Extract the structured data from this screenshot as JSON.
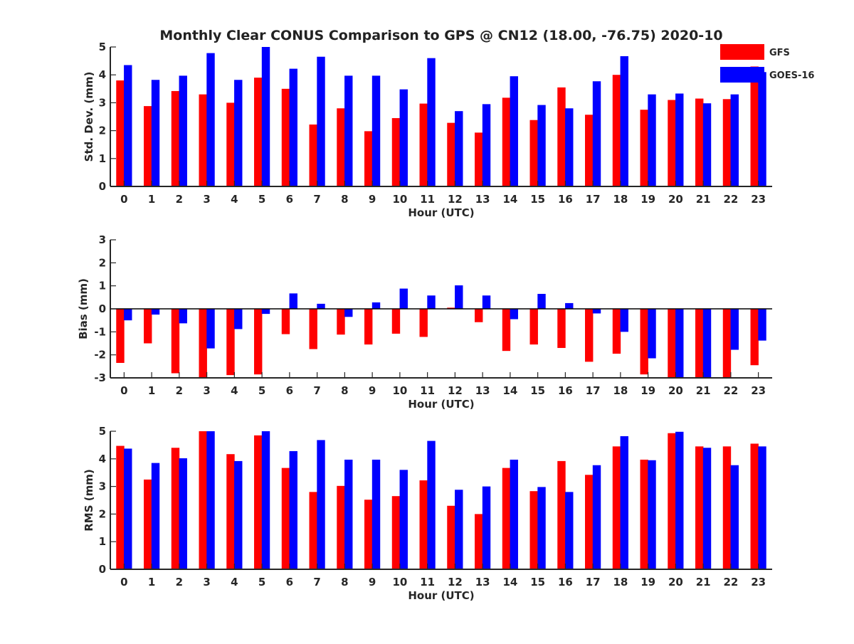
{
  "title": "Monthly Clear CONUS Comparison to GPS @ CN12 (18.00, -76.75) 2020-10",
  "colors": {
    "GFS": "#ff0000",
    "GOES-16": "#0000ff"
  },
  "chart_data": [
    {
      "type": "bar",
      "categories": [
        "0",
        "1",
        "2",
        "3",
        "4",
        "5",
        "6",
        "7",
        "8",
        "9",
        "10",
        "11",
        "12",
        "13",
        "14",
        "15",
        "16",
        "17",
        "18",
        "19",
        "20",
        "21",
        "22",
        "23"
      ],
      "xlabel": "Hour (UTC)",
      "ylabel": "Std. Dev. (mm)",
      "ylim": [
        0,
        5
      ],
      "yticks": [
        0,
        1,
        2,
        3,
        4,
        5
      ],
      "legend": "top-right",
      "series": [
        {
          "name": "GFS",
          "values": [
            3.8,
            2.88,
            3.42,
            3.3,
            3.0,
            3.9,
            3.5,
            2.22,
            2.8,
            1.98,
            2.45,
            2.97,
            2.28,
            1.93,
            3.18,
            2.38,
            3.55,
            2.57,
            4.0,
            2.75,
            3.1,
            3.15,
            3.13,
            4.3
          ]
        },
        {
          "name": "GOES-16",
          "values": [
            4.35,
            3.82,
            3.97,
            4.78,
            3.82,
            5.0,
            4.22,
            4.65,
            3.97,
            3.97,
            3.48,
            4.6,
            2.7,
            2.95,
            3.95,
            2.92,
            2.8,
            3.77,
            4.67,
            3.3,
            3.33,
            2.98,
            3.3,
            4.1
          ]
        }
      ]
    },
    {
      "type": "bar",
      "categories": [
        "0",
        "1",
        "2",
        "3",
        "4",
        "5",
        "6",
        "7",
        "8",
        "9",
        "10",
        "11",
        "12",
        "13",
        "14",
        "15",
        "16",
        "17",
        "18",
        "19",
        "20",
        "21",
        "22",
        "23"
      ],
      "xlabel": "Hour (UTC)",
      "ylabel": "Bias (mm)",
      "ylim": [
        -3,
        3
      ],
      "yticks": [
        -3,
        -2,
        -1,
        0,
        1,
        2,
        3
      ],
      "series": [
        {
          "name": "GFS",
          "values": [
            -2.35,
            -1.5,
            -2.8,
            -3.0,
            -2.88,
            -2.85,
            -1.1,
            -1.75,
            -1.12,
            -1.55,
            -1.08,
            -1.22,
            0.05,
            -0.58,
            -1.83,
            -1.55,
            -1.7,
            -2.3,
            -1.95,
            -2.85,
            -3.0,
            -3.0,
            -3.0,
            -2.45
          ]
        },
        {
          "name": "GOES-16",
          "values": [
            -0.5,
            -0.25,
            -0.63,
            -1.72,
            -0.88,
            -0.22,
            0.67,
            0.22,
            -0.35,
            0.28,
            0.88,
            0.58,
            1.02,
            0.58,
            -0.45,
            0.65,
            0.25,
            -0.2,
            -1.0,
            -2.15,
            -3.0,
            -3.0,
            -1.78,
            -1.38
          ]
        }
      ]
    },
    {
      "type": "bar",
      "categories": [
        "0",
        "1",
        "2",
        "3",
        "4",
        "5",
        "6",
        "7",
        "8",
        "9",
        "10",
        "11",
        "12",
        "13",
        "14",
        "15",
        "16",
        "17",
        "18",
        "19",
        "20",
        "21",
        "22",
        "23"
      ],
      "xlabel": "Hour (UTC)",
      "ylabel": "RMS (mm)",
      "ylim": [
        0,
        5
      ],
      "yticks": [
        0,
        1,
        2,
        3,
        4,
        5
      ],
      "series": [
        {
          "name": "GFS",
          "values": [
            4.47,
            3.25,
            4.4,
            5.0,
            4.17,
            4.85,
            3.67,
            2.8,
            3.02,
            2.52,
            2.65,
            3.22,
            2.3,
            2.0,
            3.67,
            2.83,
            3.92,
            3.42,
            4.45,
            3.97,
            4.93,
            4.45,
            4.45,
            4.55
          ]
        },
        {
          "name": "GOES-16",
          "values": [
            4.37,
            3.85,
            4.02,
            5.0,
            3.92,
            5.0,
            4.28,
            4.68,
            3.97,
            3.97,
            3.6,
            4.65,
            2.88,
            3.0,
            3.97,
            2.98,
            2.8,
            3.77,
            4.82,
            3.95,
            4.98,
            4.4,
            3.77,
            4.45
          ]
        }
      ]
    }
  ]
}
